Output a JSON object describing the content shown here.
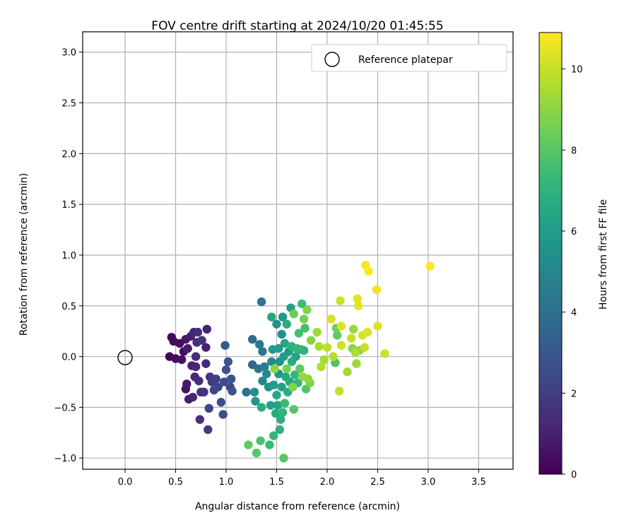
{
  "chart_data": {
    "type": "scatter",
    "title": "FOV centre drift starting at 2024/10/20 01:45:55",
    "xlabel": "Angular distance from reference (arcmin)",
    "ylabel": "Rotation from reference (arcmin)",
    "xlim": [
      -0.42,
      3.84
    ],
    "ylim": [
      -1.11,
      3.2
    ],
    "xticks": [
      0.0,
      0.5,
      1.0,
      1.5,
      2.0,
      2.5,
      3.0,
      3.5
    ],
    "xtick_labels": [
      "0.0",
      "0.5",
      "1.0",
      "1.5",
      "2.0",
      "2.5",
      "3.0",
      "3.5"
    ],
    "yticks": [
      -1.0,
      -0.5,
      0.0,
      0.5,
      1.0,
      1.5,
      2.0,
      2.5,
      3.0
    ],
    "ytick_labels": [
      "−1.0",
      "−0.5",
      "0.0",
      "0.5",
      "1.0",
      "1.5",
      "2.0",
      "2.5",
      "3.0"
    ],
    "grid": true,
    "legend": {
      "placement": "top-right",
      "entries": [
        "Reference platepar"
      ]
    },
    "reference_point": {
      "x": 0.0,
      "y": 0.0
    },
    "colorbar": {
      "label": "Hours from first FF file",
      "range": [
        0,
        10.9
      ],
      "ticks": [
        0,
        2,
        4,
        6,
        8,
        10
      ],
      "tick_labels": [
        "0",
        "2",
        "4",
        "6",
        "8",
        "10"
      ],
      "colormap": "viridis"
    },
    "colormap_stops": [
      "#440154",
      "#482878",
      "#3e4989",
      "#31688e",
      "#26828e",
      "#1f9e89",
      "#35b779",
      "#6ece58",
      "#b5de2b",
      "#fde725"
    ],
    "points": [
      {
        "x": 0.44,
        "y": 0.0,
        "c": 0.1
      },
      {
        "x": 0.46,
        "y": 0.19,
        "c": 0.2
      },
      {
        "x": 0.48,
        "y": 0.15,
        "c": 0.3
      },
      {
        "x": 0.5,
        "y": -0.02,
        "c": 0.3
      },
      {
        "x": 0.54,
        "y": 0.13,
        "c": 0.4
      },
      {
        "x": 0.56,
        "y": -0.03,
        "c": 0.5
      },
      {
        "x": 0.58,
        "y": 0.05,
        "c": 0.5
      },
      {
        "x": 0.6,
        "y": 0.17,
        "c": 0.6
      },
      {
        "x": 0.6,
        "y": -0.32,
        "c": 0.6
      },
      {
        "x": 0.61,
        "y": -0.27,
        "c": 0.7
      },
      {
        "x": 0.62,
        "y": 0.08,
        "c": 0.8
      },
      {
        "x": 0.63,
        "y": -0.42,
        "c": 0.9
      },
      {
        "x": 0.65,
        "y": 0.2,
        "c": 0.9
      },
      {
        "x": 0.66,
        "y": -0.09,
        "c": 1.0
      },
      {
        "x": 0.67,
        "y": -0.4,
        "c": 1.1
      },
      {
        "x": 0.68,
        "y": 0.24,
        "c": 1.1
      },
      {
        "x": 0.69,
        "y": -0.2,
        "c": 1.2
      },
      {
        "x": 0.7,
        "y": -0.1,
        "c": 1.2
      },
      {
        "x": 0.7,
        "y": 0.0,
        "c": 1.3
      },
      {
        "x": 0.71,
        "y": 0.14,
        "c": 1.3
      },
      {
        "x": 0.72,
        "y": 0.24,
        "c": 1.4
      },
      {
        "x": 0.73,
        "y": -0.24,
        "c": 1.4
      },
      {
        "x": 0.74,
        "y": -0.62,
        "c": 1.5
      },
      {
        "x": 0.75,
        "y": -0.35,
        "c": 1.5
      },
      {
        "x": 0.76,
        "y": 0.16,
        "c": 1.6
      },
      {
        "x": 0.78,
        "y": -0.35,
        "c": 1.6
      },
      {
        "x": 0.8,
        "y": 0.09,
        "c": 1.0
      },
      {
        "x": 0.8,
        "y": -0.07,
        "c": 1.2
      },
      {
        "x": 0.81,
        "y": 0.27,
        "c": 1.1
      },
      {
        "x": 0.82,
        "y": -0.72,
        "c": 1.9
      },
      {
        "x": 0.83,
        "y": -0.51,
        "c": 2.3
      },
      {
        "x": 0.84,
        "y": -0.2,
        "c": 1.7
      },
      {
        "x": 0.86,
        "y": -0.25,
        "c": 2.0
      },
      {
        "x": 0.88,
        "y": -0.33,
        "c": 2.4
      },
      {
        "x": 0.9,
        "y": -0.22,
        "c": 2.1
      },
      {
        "x": 0.92,
        "y": -0.3,
        "c": 2.2
      },
      {
        "x": 0.95,
        "y": -0.45,
        "c": 2.5
      },
      {
        "x": 0.97,
        "y": -0.57,
        "c": 2.7
      },
      {
        "x": 0.98,
        "y": -0.25,
        "c": 2.6
      },
      {
        "x": 0.99,
        "y": 0.11,
        "c": 3.0
      },
      {
        "x": 1.0,
        "y": -0.13,
        "c": 2.7
      },
      {
        "x": 1.02,
        "y": -0.05,
        "c": 2.8
      },
      {
        "x": 1.04,
        "y": -0.3,
        "c": 2.5
      },
      {
        "x": 1.05,
        "y": -0.22,
        "c": 2.9
      },
      {
        "x": 1.06,
        "y": -0.34,
        "c": 2.8
      },
      {
        "x": 1.2,
        "y": -0.35,
        "c": 4.0
      },
      {
        "x": 1.22,
        "y": -0.87,
        "c": 8.2
      },
      {
        "x": 1.26,
        "y": 0.17,
        "c": 3.8
      },
      {
        "x": 1.26,
        "y": -0.08,
        "c": 3.6
      },
      {
        "x": 1.28,
        "y": -0.35,
        "c": 5.4
      },
      {
        "x": 1.29,
        "y": -0.44,
        "c": 5.8
      },
      {
        "x": 1.3,
        "y": -0.95,
        "c": 8.0
      },
      {
        "x": 1.32,
        "y": -0.12,
        "c": 4.2
      },
      {
        "x": 1.33,
        "y": 0.12,
        "c": 4.4
      },
      {
        "x": 1.34,
        "y": -0.83,
        "c": 7.8
      },
      {
        "x": 1.35,
        "y": 0.54,
        "c": 4.1
      },
      {
        "x": 1.35,
        "y": -0.5,
        "c": 6.8
      },
      {
        "x": 1.36,
        "y": 0.05,
        "c": 4.3
      },
      {
        "x": 1.36,
        "y": -0.24,
        "c": 5.0
      },
      {
        "x": 1.38,
        "y": -0.1,
        "c": 4.6
      },
      {
        "x": 1.4,
        "y": -0.17,
        "c": 5.3
      },
      {
        "x": 1.42,
        "y": -0.3,
        "c": 5.6
      },
      {
        "x": 1.43,
        "y": -0.87,
        "c": 7.4
      },
      {
        "x": 1.44,
        "y": -0.48,
        "c": 6.2
      },
      {
        "x": 1.45,
        "y": 0.39,
        "c": 6.4
      },
      {
        "x": 1.45,
        "y": -0.05,
        "c": 5.1
      },
      {
        "x": 1.46,
        "y": 0.07,
        "c": 5.9
      },
      {
        "x": 1.47,
        "y": -0.78,
        "c": 7.2
      },
      {
        "x": 1.47,
        "y": -0.28,
        "c": 6.0
      },
      {
        "x": 1.48,
        "y": -0.12,
        "c": 9.0
      },
      {
        "x": 1.49,
        "y": -0.56,
        "c": 6.6
      },
      {
        "x": 1.5,
        "y": -0.38,
        "c": 6.5
      },
      {
        "x": 1.5,
        "y": 0.32,
        "c": 5.5
      },
      {
        "x": 1.51,
        "y": -0.48,
        "c": 6.3
      },
      {
        "x": 1.52,
        "y": -0.17,
        "c": 5.7
      },
      {
        "x": 1.52,
        "y": 0.08,
        "c": 6.1
      },
      {
        "x": 1.53,
        "y": -0.72,
        "c": 7.0
      },
      {
        "x": 1.53,
        "y": -0.05,
        "c": 5.6
      },
      {
        "x": 1.54,
        "y": -0.62,
        "c": 6.8
      },
      {
        "x": 1.55,
        "y": 0.22,
        "c": 5.4
      },
      {
        "x": 1.55,
        "y": -0.3,
        "c": 6.2
      },
      {
        "x": 1.56,
        "y": 0.39,
        "c": 5.8
      },
      {
        "x": 1.56,
        "y": -0.55,
        "c": 7.1
      },
      {
        "x": 1.57,
        "y": 0.0,
        "c": 6.0
      },
      {
        "x": 1.57,
        "y": -1.0,
        "c": 8.0
      },
      {
        "x": 1.58,
        "y": -0.46,
        "c": 7.4
      },
      {
        "x": 1.58,
        "y": 0.13,
        "c": 6.4
      },
      {
        "x": 1.59,
        "y": -0.2,
        "c": 6.6
      },
      {
        "x": 1.6,
        "y": 0.32,
        "c": 6.8
      },
      {
        "x": 1.6,
        "y": -0.12,
        "c": 8.6
      },
      {
        "x": 1.61,
        "y": -0.35,
        "c": 6.9
      },
      {
        "x": 1.62,
        "y": 0.05,
        "c": 5.9
      },
      {
        "x": 1.63,
        "y": -0.25,
        "c": 6.5
      },
      {
        "x": 1.64,
        "y": 0.48,
        "c": 6.2
      },
      {
        "x": 1.65,
        "y": -0.05,
        "c": 6.7
      },
      {
        "x": 1.65,
        "y": 0.1,
        "c": 7.0
      },
      {
        "x": 1.66,
        "y": -0.3,
        "c": 8.8
      },
      {
        "x": 1.67,
        "y": 0.42,
        "c": 8.4
      },
      {
        "x": 1.67,
        "y": -0.52,
        "c": 8.0
      },
      {
        "x": 1.68,
        "y": -0.18,
        "c": 7.2
      },
      {
        "x": 1.69,
        "y": 0.0,
        "c": 6.3
      },
      {
        "x": 1.7,
        "y": 0.08,
        "c": 7.3
      },
      {
        "x": 1.71,
        "y": -0.26,
        "c": 7.1
      },
      {
        "x": 1.72,
        "y": 0.23,
        "c": 7.6
      },
      {
        "x": 1.73,
        "y": -0.12,
        "c": 8.2
      },
      {
        "x": 1.74,
        "y": 0.07,
        "c": 6.9
      },
      {
        "x": 1.75,
        "y": 0.52,
        "c": 7.5
      },
      {
        "x": 1.76,
        "y": -0.2,
        "c": 9.2
      },
      {
        "x": 1.77,
        "y": 0.37,
        "c": 8.6
      },
      {
        "x": 1.77,
        "y": 0.06,
        "c": 7.0
      },
      {
        "x": 1.78,
        "y": 0.28,
        "c": 7.6
      },
      {
        "x": 1.79,
        "y": -0.32,
        "c": 7.9
      },
      {
        "x": 1.8,
        "y": 0.46,
        "c": 8.8
      },
      {
        "x": 1.81,
        "y": -0.22,
        "c": 9.0
      },
      {
        "x": 1.83,
        "y": -0.26,
        "c": 8.7
      },
      {
        "x": 1.84,
        "y": 0.16,
        "c": 8.9
      },
      {
        "x": 1.9,
        "y": 0.24,
        "c": 9.3
      },
      {
        "x": 1.92,
        "y": 0.1,
        "c": 9.5
      },
      {
        "x": 1.94,
        "y": -0.1,
        "c": 9.6
      },
      {
        "x": 1.97,
        "y": -0.03,
        "c": 9.4
      },
      {
        "x": 2.0,
        "y": 0.09,
        "c": 9.8
      },
      {
        "x": 2.04,
        "y": 0.37,
        "c": 10.2
      },
      {
        "x": 2.06,
        "y": 0.0,
        "c": 9.7
      },
      {
        "x": 2.08,
        "y": -0.06,
        "c": 7.8
      },
      {
        "x": 2.09,
        "y": 0.28,
        "c": 8.5
      },
      {
        "x": 2.1,
        "y": 0.21,
        "c": 8.2
      },
      {
        "x": 2.12,
        "y": -0.34,
        "c": 9.9
      },
      {
        "x": 2.13,
        "y": 0.55,
        "c": 10.0
      },
      {
        "x": 2.14,
        "y": 0.11,
        "c": 10.1
      },
      {
        "x": 2.14,
        "y": 0.3,
        "c": 10.3
      },
      {
        "x": 2.2,
        "y": -0.15,
        "c": 9.4
      },
      {
        "x": 2.24,
        "y": 0.18,
        "c": 10.0
      },
      {
        "x": 2.25,
        "y": 0.08,
        "c": 8.9
      },
      {
        "x": 2.26,
        "y": 0.27,
        "c": 9.2
      },
      {
        "x": 2.28,
        "y": 0.04,
        "c": 9.6
      },
      {
        "x": 2.29,
        "y": -0.07,
        "c": 9.3
      },
      {
        "x": 2.3,
        "y": 0.57,
        "c": 10.4
      },
      {
        "x": 2.31,
        "y": 0.5,
        "c": 10.5
      },
      {
        "x": 2.32,
        "y": 0.06,
        "c": 9.1
      },
      {
        "x": 2.35,
        "y": 0.21,
        "c": 10.2
      },
      {
        "x": 2.37,
        "y": 0.09,
        "c": 10.0
      },
      {
        "x": 2.38,
        "y": 0.9,
        "c": 10.8
      },
      {
        "x": 2.4,
        "y": 0.24,
        "c": 10.3
      },
      {
        "x": 2.41,
        "y": 0.84,
        "c": 10.9
      },
      {
        "x": 2.49,
        "y": 0.66,
        "c": 10.6
      },
      {
        "x": 2.5,
        "y": 0.3,
        "c": 10.4
      },
      {
        "x": 2.57,
        "y": 0.03,
        "c": 10.1
      },
      {
        "x": 3.02,
        "y": 0.89,
        "c": 10.9
      }
    ]
  }
}
